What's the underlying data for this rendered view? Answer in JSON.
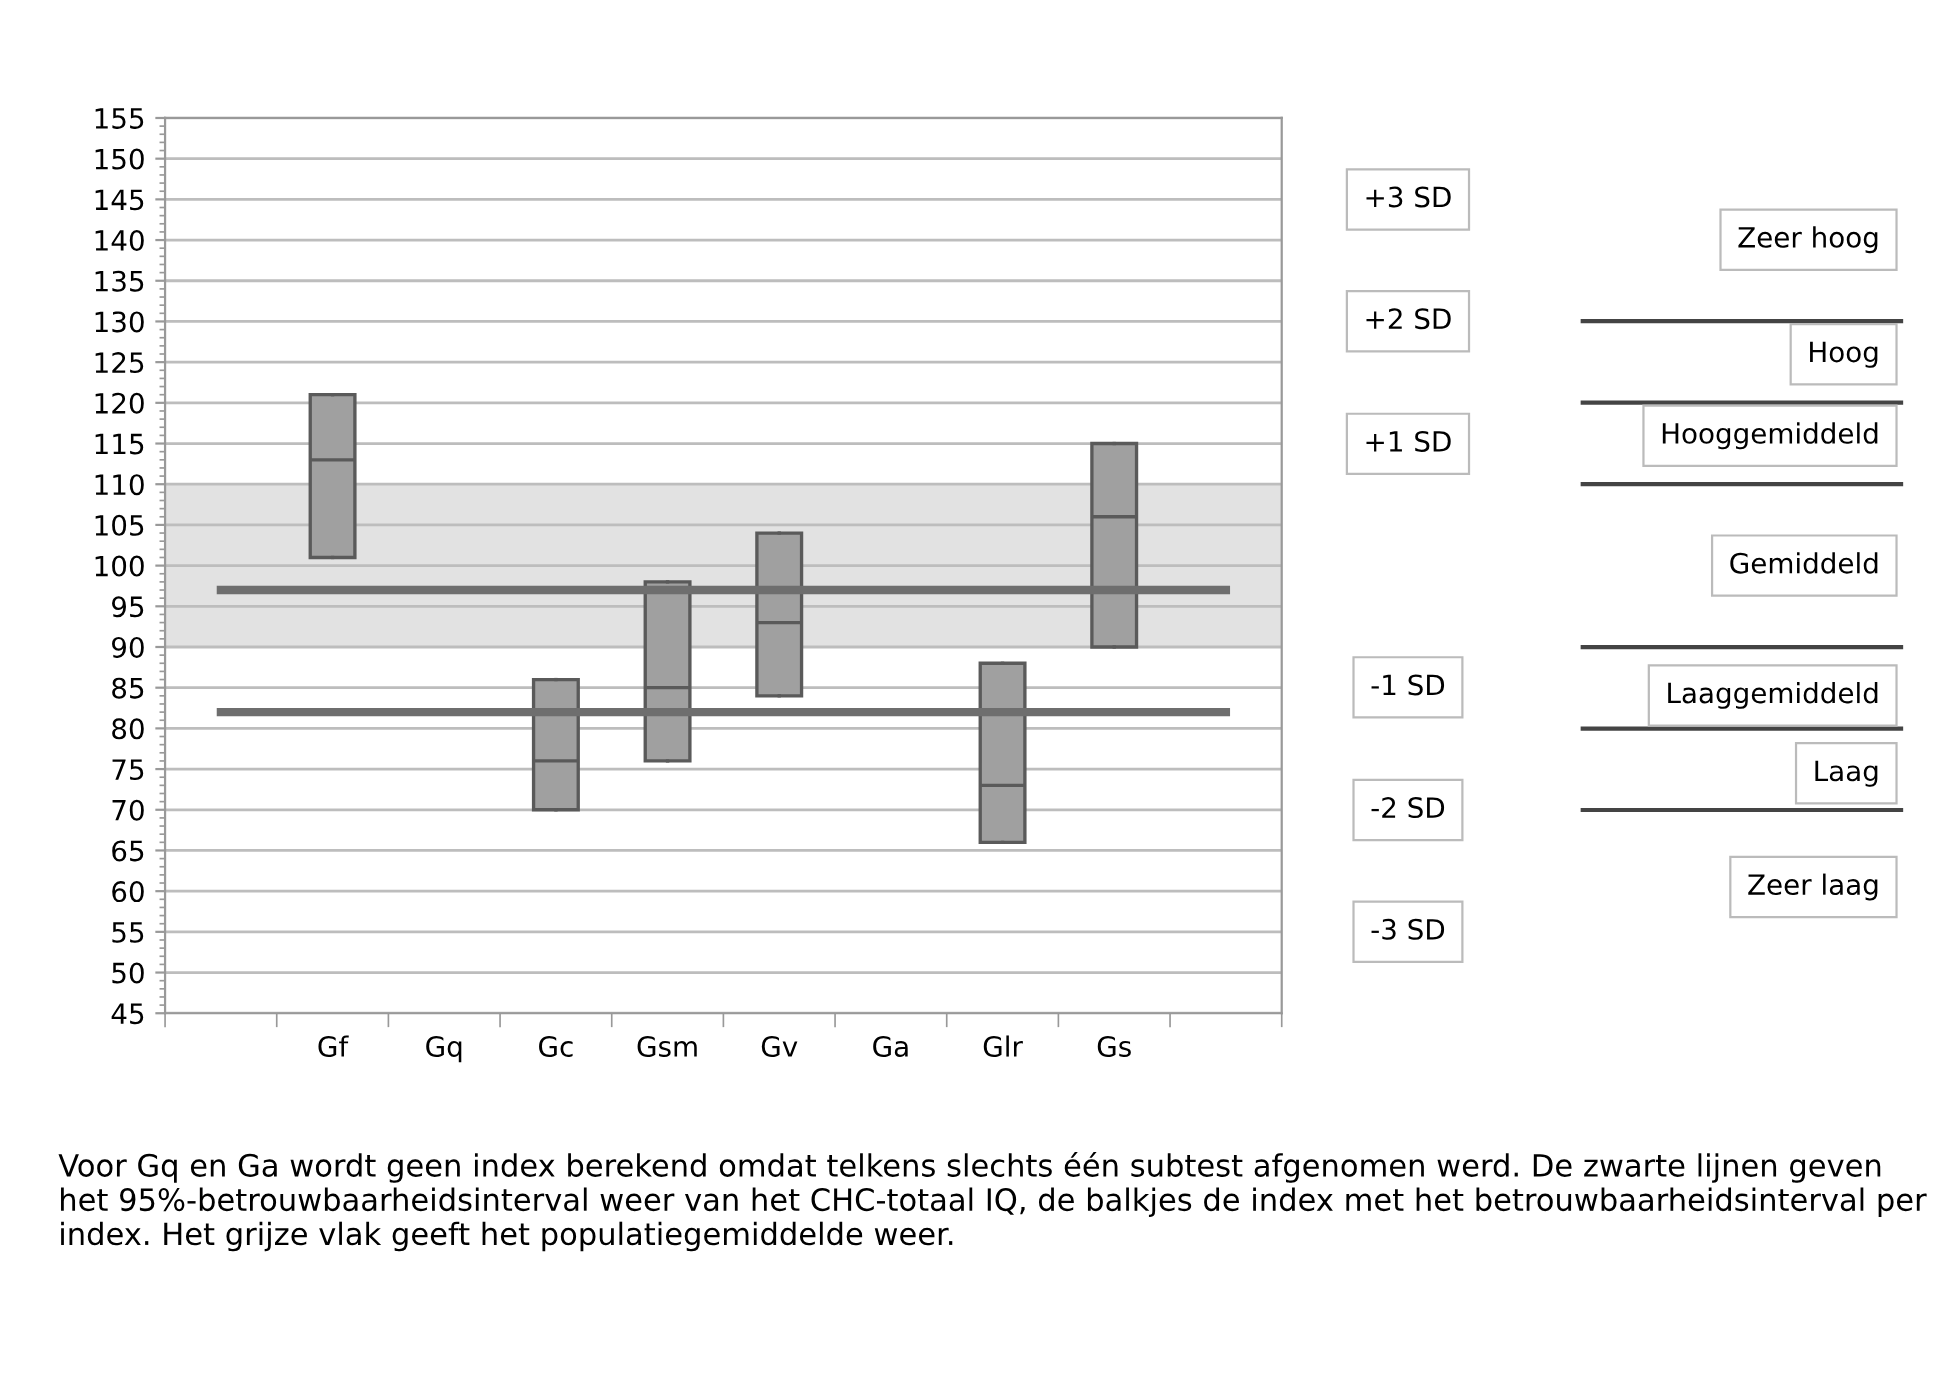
{
  "chart_data": {
    "type": "box",
    "categories": [
      null,
      "Gf",
      "Gq",
      "Gc",
      "Gsm",
      "Gv",
      "Ga",
      "Glr",
      "Gs",
      null
    ],
    "series": [
      {
        "color": "#a0a0a0",
        "boxes": [
          null,
          {
            "low": 101,
            "q1": 101,
            "median": 113,
            "q3": 121,
            "high": 121
          },
          null,
          {
            "low": 70,
            "q1": 70,
            "median": 76,
            "q3": 86,
            "high": 86
          },
          {
            "low": 76,
            "q1": 76,
            "median": 85,
            "q3": 98,
            "high": 98
          },
          {
            "low": 84,
            "q1": 84,
            "median": 93,
            "q3": 104,
            "high": 104
          },
          null,
          {
            "low": 66,
            "q1": 66,
            "median": 73,
            "q3": 88,
            "high": 88
          },
          {
            "low": 90,
            "q1": 90,
            "median": 106,
            "q3": 115,
            "high": 115
          },
          null
        ]
      }
    ],
    "ylim": [
      45,
      155
    ],
    "yticks": [
      45,
      50,
      55,
      60,
      65,
      70,
      75,
      80,
      85,
      90,
      95,
      100,
      105,
      110,
      115,
      120,
      125,
      130,
      135,
      140,
      145,
      150,
      155
    ],
    "grid": "y",
    "ref_lines": [
      {
        "axis": "y",
        "value": 97,
        "color": "#6e6e6e"
      },
      {
        "axis": "y",
        "value": 82,
        "color": "#6e6e6e"
      }
    ],
    "bands": [
      {
        "axis": "y",
        "from": 90,
        "to": 110,
        "color": "#e2e2e2"
      }
    ],
    "annotations": [
      "+3 SD",
      "+2 SD",
      "+1 SD",
      "-1 SD",
      "-2 SD",
      "-3 SD",
      "Zeer hoog",
      "Hoog",
      "Hooggemiddeld",
      "Gemiddeld",
      "Laaggemiddeld",
      "Laag",
      "Zeer laag",
      "Voor Gq en Ga wordt geen index berekend omdat telkens slechts één subtest afgenomen werd. De zwarte lijnen geven het 95%-betrouwbaarheidsinterval weer van het CHC-totaal IQ, de balkjes de index met het betrouwbaarheidsinterval per index. Het grijze vlak geeft het populatiegemiddelde weer."
    ]
  }
}
